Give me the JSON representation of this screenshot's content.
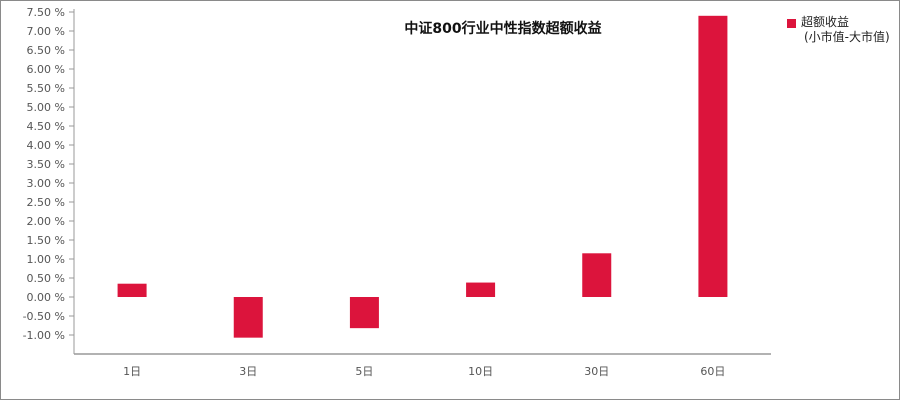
{
  "chart_data": {
    "type": "bar",
    "title": "中证800行业中性指数超额收益",
    "categories": [
      "1日",
      "3日",
      "5日",
      "10日",
      "30日",
      "60日"
    ],
    "series": [
      {
        "name": "超额收益",
        "name_line2": "(小市值-大市值)",
        "color": "#dc143c",
        "values": [
          0.35,
          -1.07,
          -0.82,
          0.38,
          1.15,
          7.4
        ]
      }
    ],
    "ylim": [
      -1.5,
      7.5
    ],
    "yticks": [
      "7.50 %",
      "7.00 %",
      "6.50 %",
      "6.00 %",
      "5.50 %",
      "5.00 %",
      "4.50 %",
      "4.00 %",
      "3.50 %",
      "3.00 %",
      "2.50 %",
      "2.00 %",
      "1.50 %",
      "1.00 %",
      "0.50 %",
      "0.00 %",
      "-0.50 %",
      "-1.00 %"
    ],
    "ytick_values": [
      7.5,
      7.0,
      6.5,
      6.0,
      5.5,
      5.0,
      4.5,
      4.0,
      3.5,
      3.0,
      2.5,
      2.0,
      1.5,
      1.0,
      0.5,
      0.0,
      -0.5,
      -1.0
    ],
    "grid": false,
    "legend_position": "right"
  }
}
